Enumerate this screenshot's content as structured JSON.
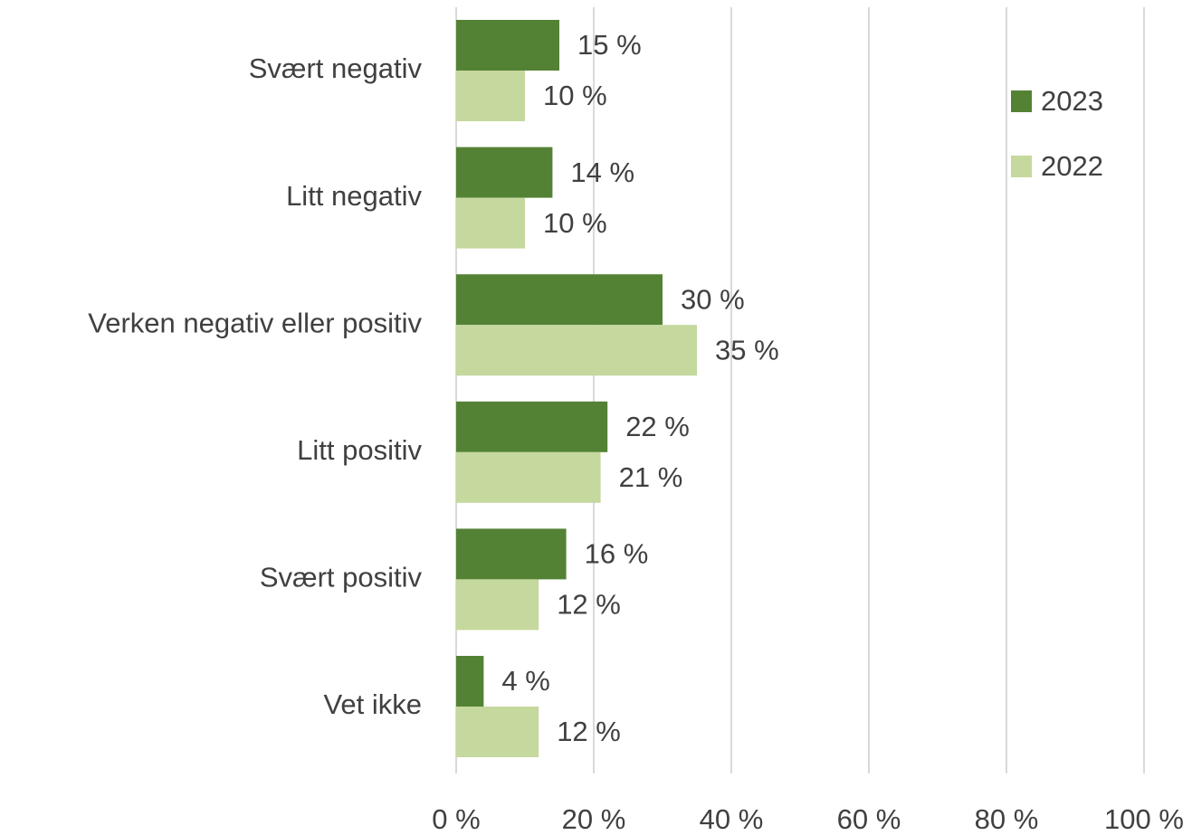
{
  "chart_data": {
    "type": "barh",
    "categories": [
      "Svært negativ",
      "Litt negativ",
      "Verken negativ eller positiv",
      "Litt positiv",
      "Svært positiv",
      "Vet ikke"
    ],
    "series": [
      {
        "name": "2023",
        "color": "#548235",
        "values": [
          15,
          14,
          30,
          22,
          16,
          4
        ],
        "value_labels": [
          "15 %",
          "14 %",
          "30 %",
          "22 %",
          "16 %",
          "4 %"
        ]
      },
      {
        "name": "2022",
        "color": "#c5d89d",
        "values": [
          10,
          10,
          35,
          21,
          12,
          12
        ],
        "value_labels": [
          "10 %",
          "10 %",
          "35 %",
          "21 %",
          "12 %",
          "12 %"
        ]
      }
    ],
    "xlim": [
      0,
      100
    ],
    "xticks": [
      {
        "value": 0,
        "label": "0 %"
      },
      {
        "value": 20,
        "label": "20 %"
      },
      {
        "value": 40,
        "label": "40 %"
      },
      {
        "value": 60,
        "label": "60 %"
      },
      {
        "value": 80,
        "label": "80 %"
      },
      {
        "value": 100,
        "label": "100 %"
      }
    ],
    "grid": true,
    "legend": "upper right"
  }
}
